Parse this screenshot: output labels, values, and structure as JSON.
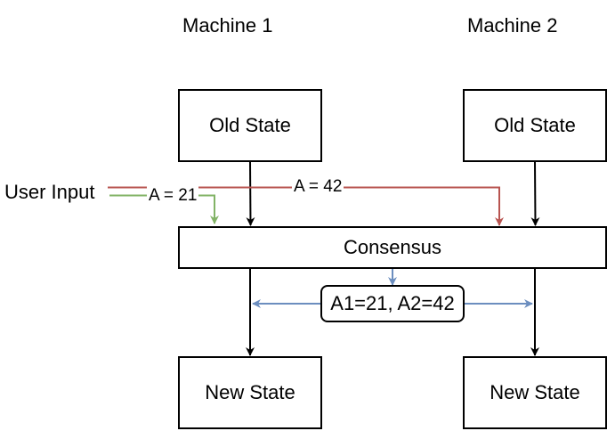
{
  "machines": [
    {
      "title": "Machine 1",
      "old_state": "Old State",
      "new_state": "New State"
    },
    {
      "title": "Machine 2",
      "old_state": "Old State",
      "new_state": "New State"
    }
  ],
  "user_input": "User Input",
  "consensus": "Consensus",
  "edges": {
    "input_m1": "A = 21",
    "input_m2": "A = 42",
    "consensus_result": "A1=21, A2=42"
  },
  "colors": {
    "input_m1": "#82b366",
    "input_m2": "#b85450",
    "consensus_result": "#6c8ebf",
    "stroke": "#000000"
  }
}
